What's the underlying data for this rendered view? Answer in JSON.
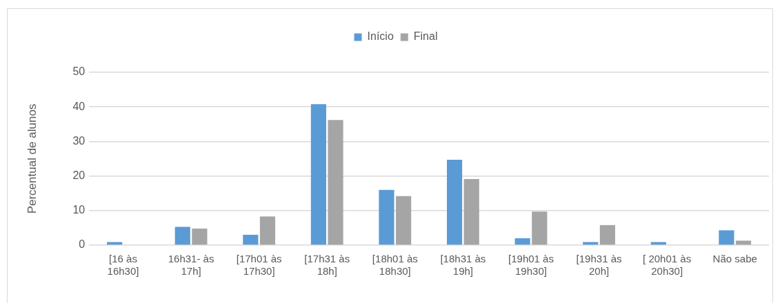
{
  "chart_data": {
    "type": "bar",
    "ylabel": "Percentual de alunos",
    "categories": [
      "[16 às 16h30]",
      "16h31- às 17h]",
      "[17h01 às 17h30]",
      "[17h31 às 18h]",
      "[18h01 às 18h30]",
      "[18h31 às 19h]",
      "[19h01 às 19h30]",
      "[19h31 às 20h]",
      "[ 20h01 às 20h30]",
      "Não sabe"
    ],
    "series": [
      {
        "name": "Início",
        "color": "#5b9bd5",
        "values": [
          0.9,
          5.3,
          3.0,
          40.8,
          16.0,
          24.7,
          2.0,
          0.9,
          0.9,
          4.3
        ]
      },
      {
        "name": "Final",
        "color": "#a5a5a5",
        "values": [
          0,
          4.8,
          8.3,
          36.2,
          14.2,
          19.1,
          9.7,
          5.8,
          0,
          1.3
        ]
      }
    ],
    "ylim": [
      0,
      50
    ],
    "yticks": [
      0,
      10,
      20,
      30,
      40,
      50
    ],
    "grid": "y",
    "legend": "top"
  }
}
